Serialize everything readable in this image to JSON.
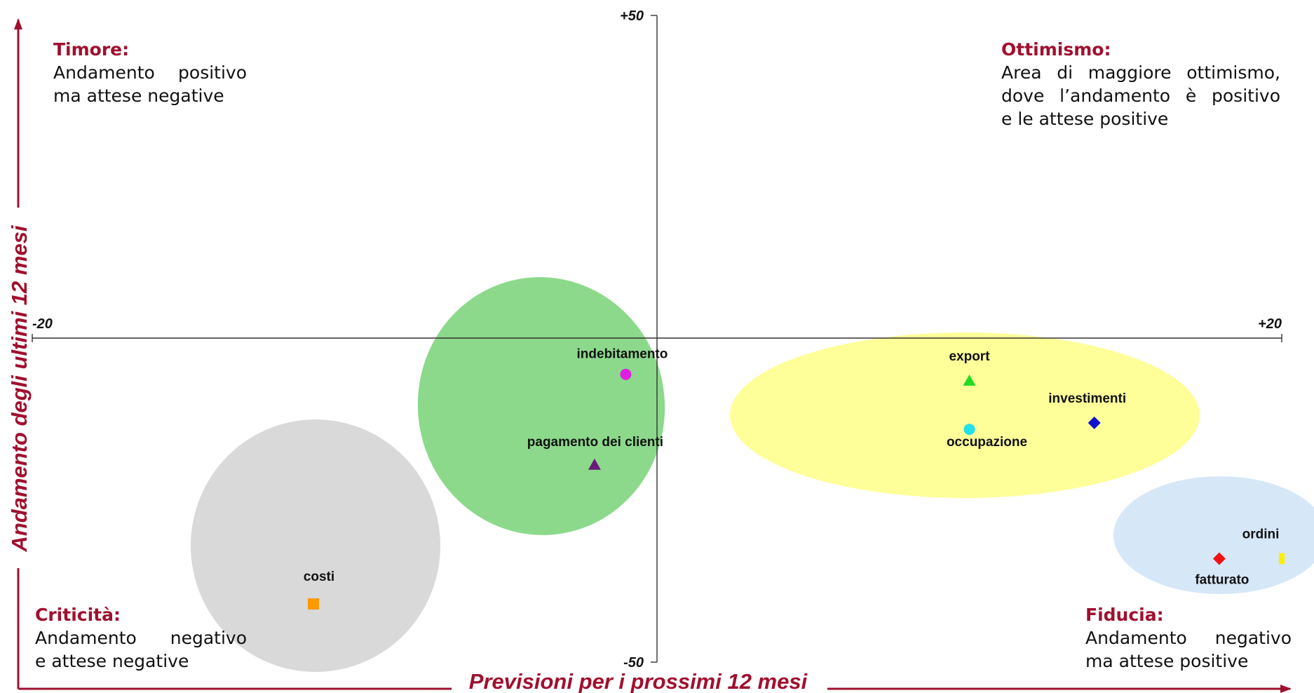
{
  "chart_data": {
    "type": "scatter",
    "title": "",
    "xlabel": "Previsioni per i prossimi 12 mesi",
    "ylabel": "Andamento degli ultimi 12 mesi",
    "xlim": [
      -20,
      20
    ],
    "ylim": [
      -50,
      50
    ],
    "x_tick_labels": [
      "-20",
      "+20"
    ],
    "y_tick_labels": [
      "+50",
      "-50"
    ],
    "grid": false,
    "points": [
      {
        "label": "indebitamento",
        "x": -1.0,
        "y": -5.5,
        "marker": "circle",
        "color": "#e020e0"
      },
      {
        "label": "pagamento dei clienti",
        "x": -2.0,
        "y": -19.5,
        "marker": "triangle",
        "color": "#6a1a7a"
      },
      {
        "label": "costi",
        "x": -11.0,
        "y": -41.0,
        "marker": "square",
        "color": "#ff9900"
      },
      {
        "label": "export",
        "x": 10.0,
        "y": -6.5,
        "marker": "triangle",
        "color": "#22dd22"
      },
      {
        "label": "occupazione",
        "x": 10.0,
        "y": -14.0,
        "marker": "circle",
        "color": "#22e0e8"
      },
      {
        "label": "investimenti",
        "x": 14.0,
        "y": -13.0,
        "marker": "diamond",
        "color": "#1010d0"
      },
      {
        "label": "fatturato",
        "x": 18.0,
        "y": -34.0,
        "marker": "diamond",
        "color": "#ee1111"
      },
      {
        "label": "ordini",
        "x": 20.0,
        "y": -34.0,
        "marker": "rect",
        "color": "#ffee00"
      }
    ],
    "regions": [
      {
        "color": "#d9d9d9"
      },
      {
        "color": "#8cd98c"
      },
      {
        "color": "#ffff99"
      },
      {
        "color": "#d6e7f8"
      }
    ]
  },
  "quadrants": {
    "tl": {
      "title": "Timore:",
      "lines": [
        "Andamento positivo",
        "ma attese negative"
      ]
    },
    "tr": {
      "title": "Ottimismo:",
      "lines": [
        "Area di maggiore ottimismo,",
        "dove l’andamento è positivo",
        "e le attese positive"
      ]
    },
    "bl": {
      "title": "Criticità:",
      "lines": [
        "Andamento negativo",
        "e attese negative"
      ]
    },
    "br": {
      "title": "Fiducia:",
      "lines": [
        "Andamento negativo",
        "ma attese positive"
      ]
    }
  },
  "colors": {
    "accent": "#a0102e",
    "axis": "#333333",
    "label": "#111111"
  }
}
